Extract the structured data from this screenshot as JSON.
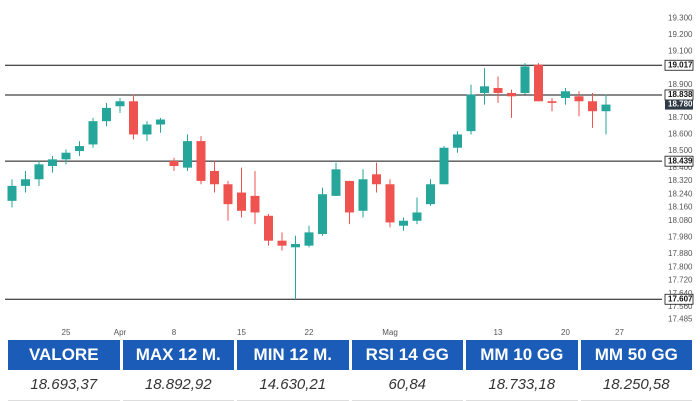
{
  "chart_data": {
    "type": "candlestick",
    "categories": [
      null,
      null,
      null,
      null,
      "25",
      null,
      null,
      null,
      "Apr",
      null,
      null,
      null,
      "8",
      null,
      null,
      null,
      null,
      "15",
      null,
      null,
      null,
      null,
      "22",
      null,
      null,
      null,
      null,
      null,
      "Mag",
      null,
      null,
      null,
      null,
      null,
      null,
      null,
      "13",
      null,
      null,
      null,
      null,
      "20",
      null,
      null,
      null,
      "27"
    ],
    "open": [
      18200,
      18290,
      18330,
      18410,
      18450,
      18500,
      18540,
      18680,
      18770,
      18800,
      18600,
      18660,
      18440,
      18400,
      18560,
      18380,
      18300,
      18250,
      18230,
      18110,
      17960,
      17920,
      17930,
      18000,
      18230,
      18320,
      18140,
      18360,
      18300,
      18050,
      18080,
      18180,
      18300,
      18520,
      18620,
      18850,
      18880,
      18850,
      18850,
      19020,
      18800,
      18820,
      18830,
      18800,
      18740,
      null
    ],
    "high": [
      18330,
      18380,
      18440,
      18470,
      18510,
      18560,
      18700,
      18790,
      18820,
      18840,
      18680,
      18700,
      18460,
      18600,
      18590,
      18440,
      18320,
      18400,
      18380,
      18120,
      18010,
      17990,
      18050,
      18280,
      18430,
      18320,
      18390,
      18430,
      18330,
      18100,
      18220,
      18330,
      18530,
      18620,
      18900,
      19000,
      18950,
      18870,
      19030,
      19030,
      18820,
      18880,
      18860,
      18850,
      18840,
      null
    ],
    "low": [
      18160,
      18250,
      18290,
      18370,
      18420,
      18470,
      18520,
      18650,
      18730,
      18570,
      18560,
      18610,
      18380,
      18380,
      18300,
      18250,
      18080,
      18100,
      18060,
      17930,
      17900,
      17607,
      17920,
      17990,
      18230,
      18060,
      18100,
      18250,
      18040,
      18020,
      18060,
      18170,
      18300,
      18490,
      18600,
      18780,
      18790,
      18700,
      18840,
      18800,
      18740,
      18780,
      18710,
      18640,
      18600,
      null
    ],
    "close": [
      18290,
      18330,
      18420,
      18450,
      18490,
      18530,
      18680,
      18760,
      18800,
      18600,
      18660,
      18690,
      18410,
      18560,
      18320,
      18300,
      18180,
      18140,
      18130,
      17960,
      17930,
      17940,
      18010,
      18240,
      18390,
      18130,
      18330,
      18300,
      18070,
      18080,
      18130,
      18300,
      18520,
      18600,
      18840,
      18890,
      18850,
      18830,
      19010,
      18800,
      18790,
      18860,
      18800,
      18740,
      18780,
      null
    ],
    "up_color": "#26a69a",
    "down_color": "#ef5350",
    "ylim": [
      17470,
      19380
    ],
    "yticks": [
      {
        "value": 19300,
        "label": "19.300"
      },
      {
        "value": 19200,
        "label": "19.200"
      },
      {
        "value": 19100,
        "label": "19.100"
      },
      {
        "value": 18900,
        "label": "18.900"
      },
      {
        "value": 18800,
        "label": "18.800"
      },
      {
        "value": 18700,
        "label": "18.700"
      },
      {
        "value": 18600,
        "label": "18.600"
      },
      {
        "value": 18500,
        "label": "18.500"
      },
      {
        "value": 18400,
        "label": "18.400"
      },
      {
        "value": 18320,
        "label": "18.320"
      },
      {
        "value": 18240,
        "label": "18.240"
      },
      {
        "value": 18160,
        "label": "18.160"
      },
      {
        "value": 18080,
        "label": "18.080"
      },
      {
        "value": 17980,
        "label": "17.980"
      },
      {
        "value": 17880,
        "label": "17.880"
      },
      {
        "value": 17800,
        "label": "17.800"
      },
      {
        "value": 17720,
        "label": "17.720"
      },
      {
        "value": 17640,
        "label": "17.640"
      },
      {
        "value": 17560,
        "label": "17.560"
      },
      {
        "value": 17485,
        "label": "17.485"
      }
    ],
    "levels": [
      {
        "value": 19017,
        "label": "19.017"
      },
      {
        "value": 18838,
        "label": "18.838"
      },
      {
        "value": 18439,
        "label": "18.439"
      },
      {
        "value": 17607,
        "label": "17.607"
      }
    ],
    "last_price": {
      "value": 18780,
      "label": "18.780"
    },
    "grid": false
  },
  "table": {
    "headers": [
      "VALORE",
      "MAX 12 M.",
      "MIN 12 M.",
      "RSI 14 GG",
      "MM 10 GG",
      "MM 50 GG"
    ],
    "values": [
      "18.693,37",
      "18.892,92",
      "14.630,21",
      "60,84",
      "18.733,18",
      "18.250,58"
    ]
  }
}
